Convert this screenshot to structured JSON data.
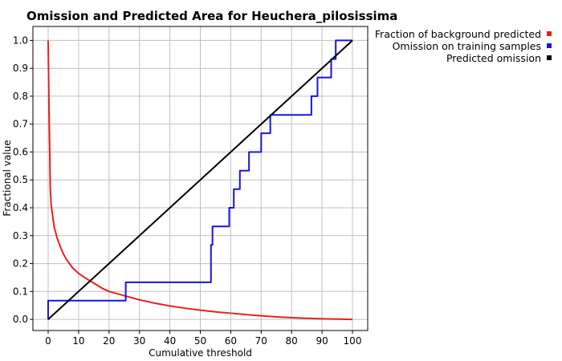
{
  "chart_data": {
    "type": "line",
    "title": "Omission and Predicted Area for Heuchera_pilosissima",
    "xlabel": "Cumulative threshold",
    "ylabel": "Fractional value",
    "xlim": [
      -5,
      105
    ],
    "ylim": [
      -0.04,
      1.05
    ],
    "xticks": [
      0,
      10,
      20,
      30,
      40,
      50,
      60,
      70,
      80,
      90,
      100
    ],
    "yticks": [
      0.0,
      0.1,
      0.2,
      0.3,
      0.4,
      0.5,
      0.6,
      0.7,
      0.8,
      0.9,
      1.0
    ],
    "grid": true,
    "legend_position": "top-right, outside plot",
    "series": [
      {
        "name": "Fraction of background predicted",
        "color": "#e82020",
        "x": [
          0,
          0.1,
          0.3,
          0.5,
          0.7,
          1,
          1.5,
          2,
          3,
          4,
          5,
          6,
          8,
          10,
          12,
          15,
          18,
          20,
          25,
          30,
          35,
          40,
          45,
          50,
          55,
          60,
          65,
          70,
          75,
          80,
          85,
          90,
          95,
          100
        ],
        "y": [
          1.0,
          0.92,
          0.75,
          0.62,
          0.47,
          0.41,
          0.37,
          0.33,
          0.29,
          0.26,
          0.235,
          0.215,
          0.185,
          0.165,
          0.15,
          0.13,
          0.11,
          0.1,
          0.085,
          0.07,
          0.058,
          0.048,
          0.04,
          0.033,
          0.027,
          0.022,
          0.017,
          0.013,
          0.009,
          0.006,
          0.004,
          0.002,
          0.001,
          0.0
        ]
      },
      {
        "name": "Omission on training samples",
        "color": "#1515e0",
        "step": true,
        "x": [
          0,
          25.5,
          26,
          53.5,
          54,
          59.5,
          61,
          63,
          66,
          70,
          73,
          86.5,
          88.5,
          93,
          94.5,
          100
        ],
        "y": [
          0.0,
          0.067,
          0.133,
          0.133,
          0.267,
          0.333,
          0.4,
          0.467,
          0.533,
          0.6,
          0.667,
          0.733,
          0.8,
          0.867,
          0.933,
          1.0
        ]
      },
      {
        "name": "Predicted omission",
        "color": "#000000",
        "x": [
          0,
          100
        ],
        "y": [
          0,
          1
        ]
      }
    ]
  }
}
